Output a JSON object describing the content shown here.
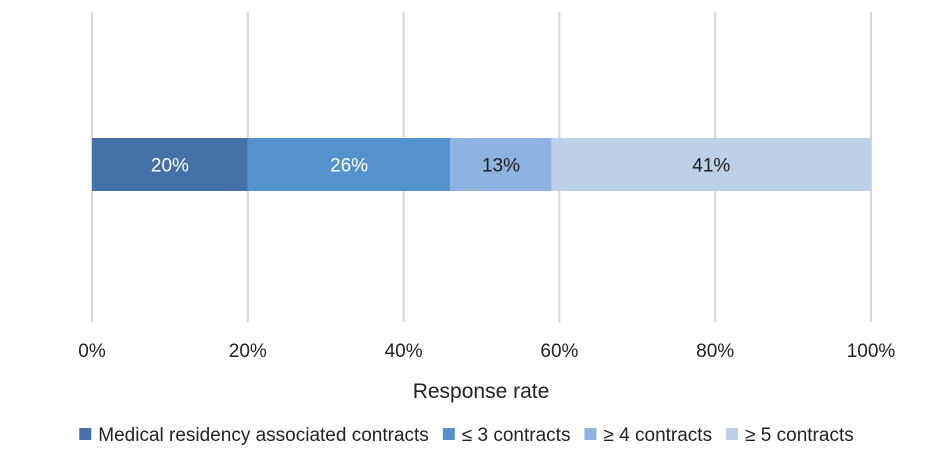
{
  "chart_data": {
    "type": "bar",
    "orientation": "horizontal",
    "stacked": true,
    "title": "",
    "xlabel": "Response rate",
    "ylabel": "",
    "xlim": [
      0,
      100
    ],
    "x_ticks": [
      "0%",
      "20%",
      "40%",
      "60%",
      "80%",
      "100%"
    ],
    "grid": true,
    "legend_position": "bottom",
    "series": [
      {
        "name": "Medical residency associated contracts",
        "values": [
          20
        ],
        "label": "20%",
        "color": "#4472a8",
        "label_color": "#ffffff"
      },
      {
        "name": "≤ 3 contracts",
        "values": [
          26
        ],
        "label": "26%",
        "color": "#5591cc",
        "label_color": "#ffffff"
      },
      {
        "name": "≥ 4 contracts",
        "values": [
          13
        ],
        "label": "13%",
        "color": "#8eb3e0",
        "label_color": "#1f1f1f"
      },
      {
        "name": "≥ 5 contracts",
        "values": [
          41
        ],
        "label": "41%",
        "color": "#bcd0ea",
        "label_color": "#1f1f1f"
      }
    ]
  }
}
